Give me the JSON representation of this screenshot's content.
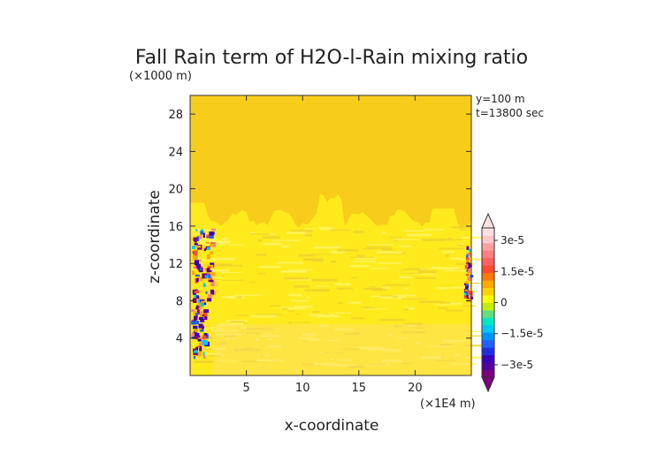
{
  "chart_data": {
    "type": "heatmap",
    "title": "Fall Rain term of H2O-l-Rain mixing ratio",
    "xlabel": "x-coordinate",
    "ylabel": "z-coordinate",
    "x_units": "(×1E4 m)",
    "y_units": "(×1000 m)",
    "xlim": [
      0,
      25
    ],
    "ylim": [
      0,
      30
    ],
    "x_ticks": [
      5,
      10,
      15,
      20
    ],
    "y_ticks": [
      4,
      8,
      12,
      16,
      20,
      24,
      28
    ],
    "annotations": [
      "y=100 m",
      "t=13800 sec"
    ],
    "colorbar": {
      "ticks": [
        {
          "value": 3e-05,
          "label": "3e-5"
        },
        {
          "value": 1.5e-05,
          "label": "1.5e-5"
        },
        {
          "value": 0,
          "label": "0"
        },
        {
          "value": -1.5e-05,
          "label": "−1.5e-5"
        },
        {
          "value": -3e-05,
          "label": "−3e-5"
        }
      ],
      "min": -3.6e-05,
      "max": 3.6e-05,
      "colors": [
        "#7a0080",
        "#5500a0",
        "#3a00c0",
        "#2030e0",
        "#2060ff",
        "#0090ff",
        "#00c8ff",
        "#00e8c0",
        "#60e080",
        "#c0f000",
        "#ffff00",
        "#ffd400",
        "#ffa800",
        "#ff7a00",
        "#ff4a30",
        "#ff6060",
        "#ff8080",
        "#ffa0a0",
        "#ffc8c8",
        "#ffe0e0"
      ]
    },
    "background_value": 0,
    "regions": [
      {
        "description": "yellow band of small values",
        "x_range": [
          0,
          25
        ],
        "z_range": [
          0,
          17
        ]
      },
      {
        "description": "mixed positive/negative streak near left edge",
        "x_range": [
          0,
          2
        ],
        "z_range": [
          2,
          16
        ]
      },
      {
        "description": "mixed positive/negative streak near right edge",
        "x_range": [
          24.5,
          25
        ],
        "z_range": [
          8,
          14
        ]
      }
    ]
  }
}
